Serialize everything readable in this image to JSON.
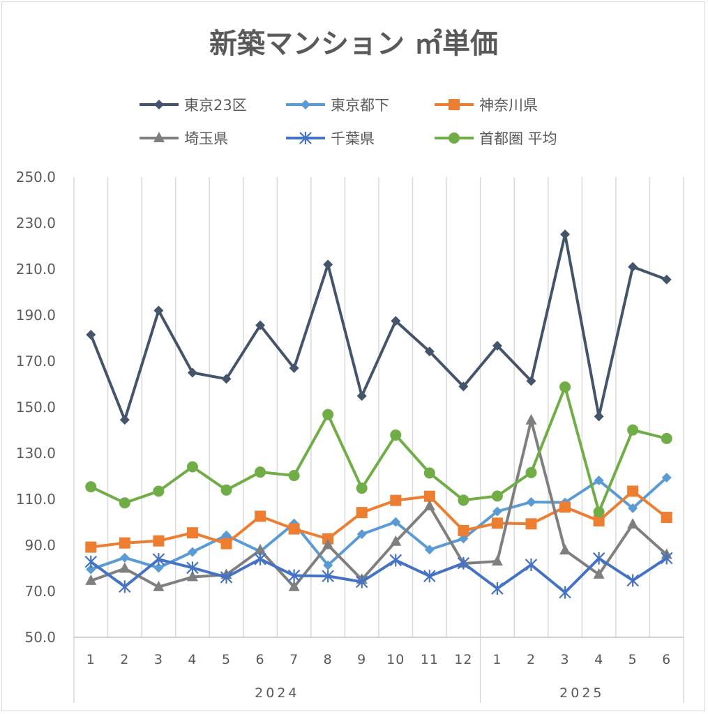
{
  "chart_data": {
    "type": "line",
    "title": "新築マンション ㎡単価",
    "ylim": [
      50,
      250
    ],
    "yticks": [
      50,
      70,
      90,
      110,
      130,
      150,
      170,
      190,
      210,
      230,
      250
    ],
    "ytick_labels": [
      "50.0",
      "70.0",
      "90.0",
      "110.0",
      "130.0",
      "150.0",
      "170.0",
      "190.0",
      "210.0",
      "230.0",
      "250.0"
    ],
    "categories": [
      "1",
      "2",
      "3",
      "4",
      "5",
      "6",
      "7",
      "8",
      "9",
      "10",
      "11",
      "12",
      "1",
      "2",
      "3",
      "4",
      "5",
      "6"
    ],
    "years": [
      {
        "label": "2024",
        "span": 12
      },
      {
        "label": "2025",
        "span": 6
      }
    ],
    "grid": true,
    "legend_position": "top",
    "series": [
      {
        "name": "東京23区",
        "color": "#44546A",
        "marker": "diamond",
        "values": [
          181.5,
          144.5,
          192.0,
          165.0,
          162.3,
          185.6,
          167.0,
          212.0,
          154.9,
          187.5,
          174.2,
          159.0,
          176.7,
          161.4,
          225.1,
          146.0,
          211.0,
          205.5
        ]
      },
      {
        "name": "東京都下",
        "color": "#5B9BD5",
        "marker": "diamond",
        "values": [
          79.5,
          84.6,
          80.2,
          87.1,
          94.3,
          87.3,
          99.5,
          81.3,
          94.8,
          100.1,
          88.1,
          92.9,
          104.7,
          108.8,
          108.6,
          118.2,
          106.1,
          119.4
        ]
      },
      {
        "name": "神奈川県",
        "color": "#ED7D31",
        "marker": "square",
        "values": [
          89.2,
          91.0,
          91.9,
          95.4,
          90.7,
          102.6,
          97.1,
          92.8,
          104.2,
          109.5,
          111.3,
          96.4,
          99.6,
          99.3,
          106.6,
          100.6,
          113.5,
          102.1
        ]
      },
      {
        "name": "埼玉県",
        "color": "#7F7F7F",
        "marker": "triangle",
        "values": [
          74.6,
          79.9,
          71.9,
          76.2,
          77.2,
          87.9,
          71.9,
          90.1,
          75.1,
          91.6,
          107.0,
          82.1,
          83.0,
          144.3,
          87.8,
          77.3,
          99.1,
          85.9
        ]
      },
      {
        "name": "千葉県",
        "color": "#4472C4",
        "marker": "star",
        "values": [
          82.8,
          72.0,
          83.9,
          80.2,
          76.1,
          84.0,
          76.8,
          76.6,
          74.1,
          83.5,
          76.6,
          82.2,
          71.2,
          81.5,
          69.5,
          84.3,
          74.7,
          84.4
        ]
      },
      {
        "name": "首都圏 平均",
        "color": "#70AD47",
        "marker": "circle",
        "values": [
          115.4,
          108.4,
          113.5,
          124.1,
          114.0,
          121.8,
          120.3,
          146.8,
          114.8,
          137.9,
          121.4,
          109.6,
          111.4,
          121.6,
          158.8,
          104.5,
          140.1,
          136.4
        ]
      }
    ]
  }
}
